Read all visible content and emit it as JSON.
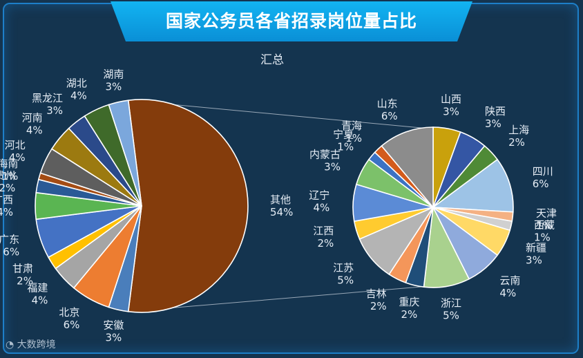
{
  "title": "国家公务员各省招录岗位量占比",
  "watermark": "大数跨境",
  "chart_data": {
    "type": "pie",
    "subtitle": "汇总",
    "main_pie": [
      {
        "name": "其他",
        "value": 54,
        "label": "54%",
        "color": "#843c0c"
      },
      {
        "name": "安徽",
        "value": 3,
        "label": "3%",
        "color": "#4a7ebb"
      },
      {
        "name": "北京",
        "value": 6,
        "label": "6%",
        "color": "#ed7d31"
      },
      {
        "name": "福建",
        "value": 4,
        "label": "4%",
        "color": "#a5a5a5"
      },
      {
        "name": "甘肃",
        "value": 2,
        "label": "2%",
        "color": "#ffc000"
      },
      {
        "name": "广东",
        "value": 6,
        "label": "6%",
        "color": "#4472c4"
      },
      {
        "name": "广西",
        "value": 4,
        "label": "4%",
        "color": "#5ab552"
      },
      {
        "name": "贵州",
        "value": 2,
        "label": "2%",
        "color": "#2a5a96"
      },
      {
        "name": "海南",
        "value": 1,
        "label": "1%",
        "color": "#a44c14"
      },
      {
        "name": "河北",
        "value": 4,
        "label": "4%",
        "color": "#5e5e5e"
      },
      {
        "name": "河南",
        "value": 4,
        "label": "4%",
        "color": "#9c7a10"
      },
      {
        "name": "黑龙江",
        "value": 3,
        "label": "3%",
        "color": "#2b4a8a"
      },
      {
        "name": "湖北",
        "value": 4,
        "label": "4%",
        "color": "#3f6a2a"
      },
      {
        "name": "湖南",
        "value": 3,
        "label": "3%",
        "color": "#7ba7dc"
      }
    ],
    "secondary_pie": [
      {
        "name": "山西",
        "value": 3,
        "label": "3%",
        "color": "#c9a10c"
      },
      {
        "name": "陕西",
        "value": 3,
        "label": "3%",
        "color": "#3456a4"
      },
      {
        "name": "上海",
        "value": 2,
        "label": "2%",
        "color": "#4f8a36"
      },
      {
        "name": "四川",
        "value": 6,
        "label": "6%",
        "color": "#9dc3e6"
      },
      {
        "name": "天津",
        "value": 1,
        "label": "1%",
        "color": "#f4b183"
      },
      {
        "name": "西藏",
        "value": 1,
        "label": "1%",
        "color": "#d0d0d0"
      },
      {
        "name": "新疆",
        "value": 3,
        "label": "3%",
        "color": "#ffd966"
      },
      {
        "name": "云南",
        "value": 4,
        "label": "4%",
        "color": "#8faadc"
      },
      {
        "name": "浙江",
        "value": 5,
        "label": "5%",
        "color": "#a9d18e"
      },
      {
        "name": "重庆",
        "value": 2,
        "label": "2%",
        "color": "#1f4e79"
      },
      {
        "name": "吉林",
        "value": 2,
        "label": "2%",
        "color": "#f4965a"
      },
      {
        "name": "江苏",
        "value": 5,
        "label": "5%",
        "color": "#b4b4b4"
      },
      {
        "name": "江西",
        "value": 2,
        "label": "2%",
        "color": "#ffcb2f"
      },
      {
        "name": "辽宁",
        "value": 4,
        "label": "4%",
        "color": "#5b8bd6"
      },
      {
        "name": "内蒙古",
        "value": 3,
        "label": "3%",
        "color": "#7cc16a"
      },
      {
        "name": "宁夏",
        "value": 1,
        "label": "1%",
        "color": "#3b72c4"
      },
      {
        "name": "青海",
        "value": 1,
        "label": "1%",
        "color": "#d35b1c"
      },
      {
        "name": "山东",
        "value": 6,
        "label": "6%",
        "color": "#8c8c8c"
      }
    ],
    "legend": "none"
  }
}
